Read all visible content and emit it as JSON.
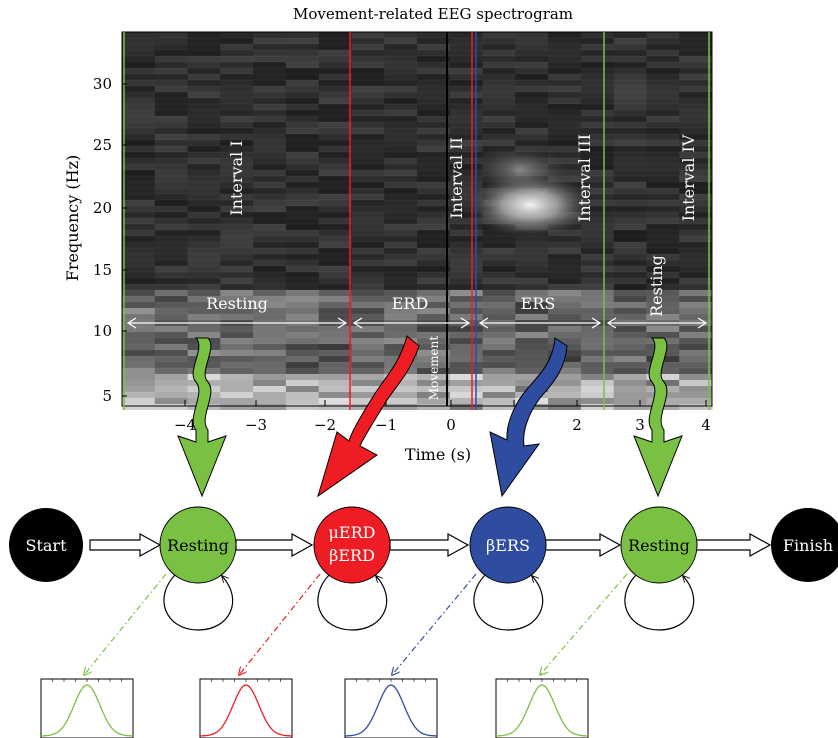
{
  "title": "Movement-related EEG spectrogram",
  "axes": {
    "xlabel": "Time (s)",
    "ylabel": "Frequency (Hz)",
    "x_ticks": [
      "−4",
      "−3",
      "−2",
      "−1",
      "0",
      "1",
      "2",
      "3",
      "4"
    ],
    "y_ticks": [
      "30",
      "25",
      "20",
      "15",
      "10",
      "5"
    ]
  },
  "intervals": [
    "Interval I",
    "Interval II",
    "Interval III",
    "Interval IV"
  ],
  "spans": [
    "Resting",
    "ERD",
    "ERS",
    "Resting"
  ],
  "movement_label": "Movement",
  "colors": {
    "green": "#7ac143",
    "red": "#ee1d23",
    "blue": "#2f4da0",
    "black": "#000000"
  },
  "states": {
    "start": "Start",
    "resting1": "Resting",
    "erd_line1": "μERD",
    "erd_line2": "βERD",
    "ers": "βERS",
    "resting2": "Resting",
    "finish": "Finish"
  }
}
